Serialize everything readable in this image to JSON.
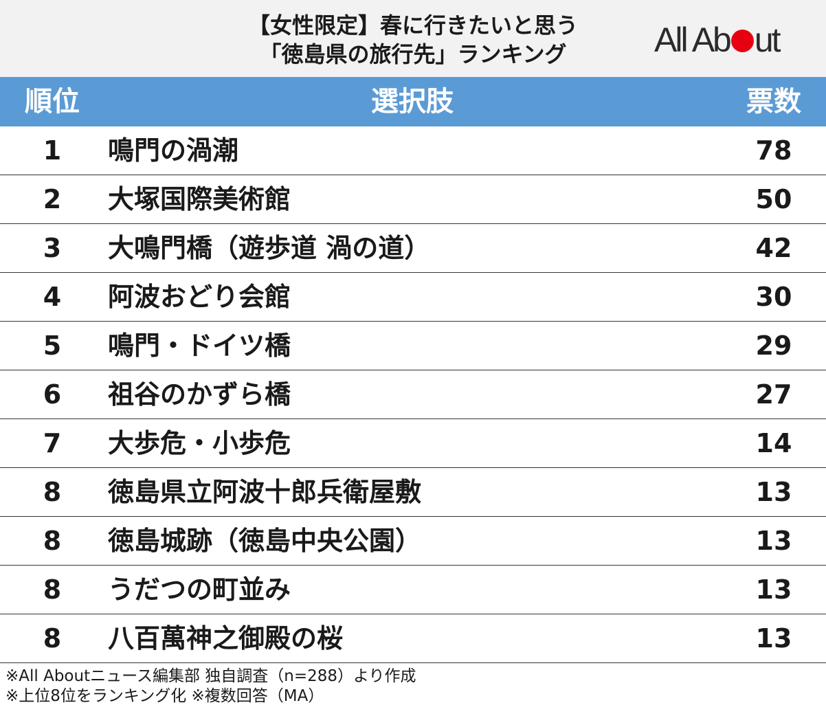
{
  "title": {
    "line1": "【女性限定】春に行きたいと思う",
    "line2": "「徳島県の旅行先」ランキング"
  },
  "logo": {
    "text_before": "All Ab",
    "text_after": "ut",
    "dot_color": "#e60012"
  },
  "colors": {
    "header_bg": "#5b9bd5",
    "title_band_bg": "#f2f2f2"
  },
  "chart_data": {
    "type": "table",
    "columns": [
      "順位",
      "選択肢",
      "票数"
    ],
    "rows": [
      {
        "rank": "1",
        "choice": "鳴門の渦潮",
        "votes": "78"
      },
      {
        "rank": "2",
        "choice": "大塚国際美術館",
        "votes": "50"
      },
      {
        "rank": "3",
        "choice": "大鳴門橋（遊歩道 渦の道）",
        "votes": "42"
      },
      {
        "rank": "4",
        "choice": "阿波おどり会館",
        "votes": "30"
      },
      {
        "rank": "5",
        "choice": "鳴門・ドイツ橋",
        "votes": "29"
      },
      {
        "rank": "6",
        "choice": "祖谷のかずら橋",
        "votes": "27"
      },
      {
        "rank": "7",
        "choice": "大歩危・小歩危",
        "votes": "14"
      },
      {
        "rank": "8",
        "choice": "徳島県立阿波十郎兵衛屋敷",
        "votes": "13"
      },
      {
        "rank": "8",
        "choice": "徳島城跡（徳島中央公園）",
        "votes": "13"
      },
      {
        "rank": "8",
        "choice": "うだつの町並み",
        "votes": "13"
      },
      {
        "rank": "8",
        "choice": "八百萬神之御殿の桜",
        "votes": "13"
      }
    ]
  },
  "footnotes": {
    "line1": "※All Aboutニュース編集部 独自調査（n=288）より作成",
    "line2": "※上位8位をランキング化 ※複数回答（MA）"
  }
}
